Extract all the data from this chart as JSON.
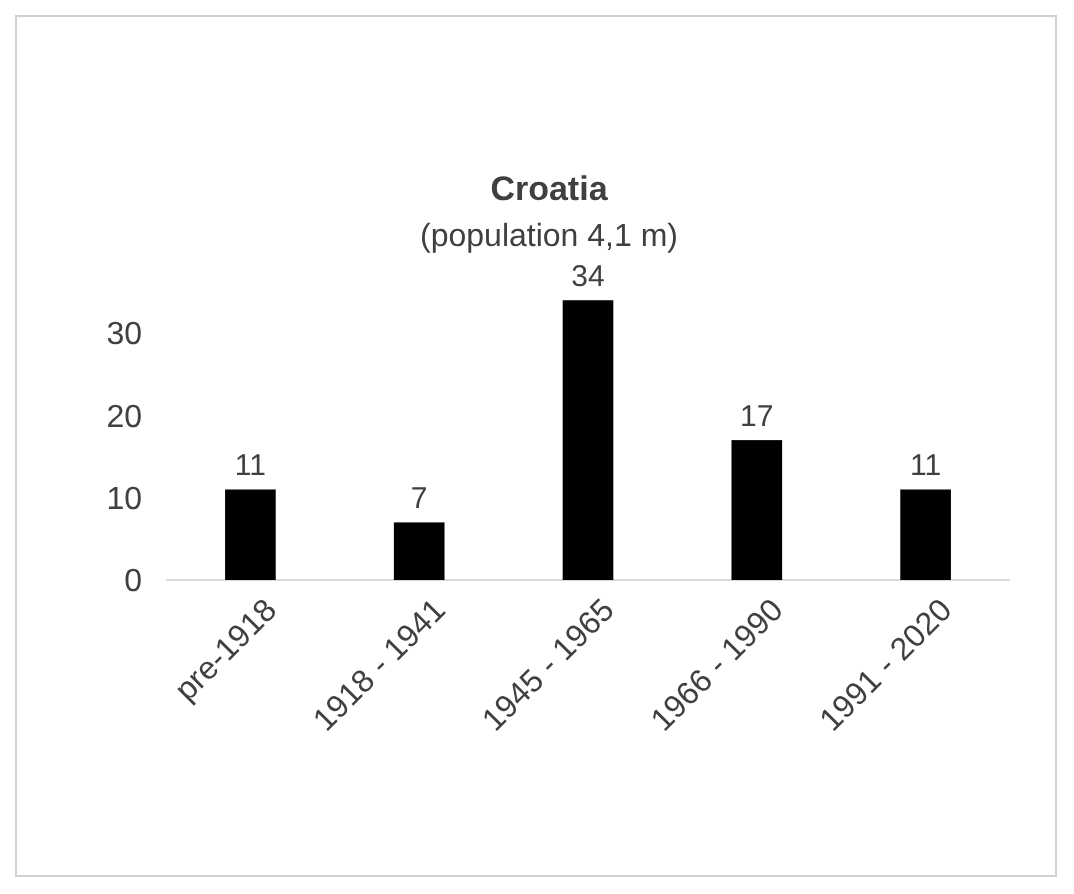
{
  "chart_data": {
    "type": "bar",
    "title": "Croatia",
    "subtitle": "(population 4,1 m)",
    "categories": [
      "pre-1918",
      "1918 - 1941",
      "1945 - 1965",
      "1966 - 1990",
      "1991 - 2020"
    ],
    "values": [
      11,
      7,
      34,
      17,
      11
    ],
    "color": "#000000",
    "ylim": [
      0,
      35
    ],
    "yticks": [
      0,
      10,
      20,
      30
    ],
    "data_labels": true,
    "grid": false
  }
}
